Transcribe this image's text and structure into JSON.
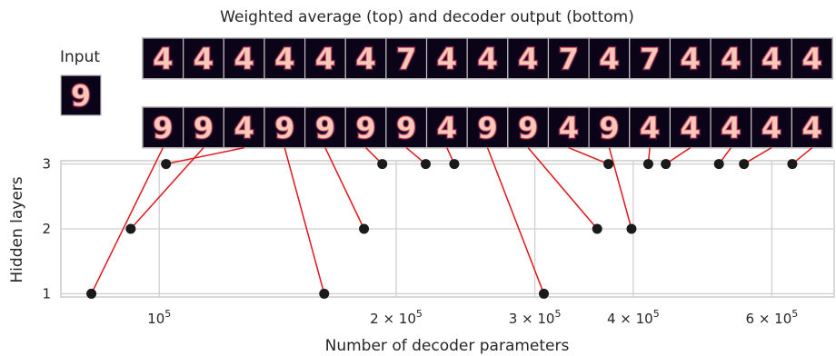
{
  "chart_data": {
    "type": "scatter",
    "title": "Weighted average (top) and decoder output (bottom)",
    "xlabel": "Number of decoder parameters",
    "ylabel": "Hidden layers",
    "xscale": "log",
    "xlim": [
      75000,
      720000
    ],
    "ylim": [
      0.95,
      3.05
    ],
    "yticks": [
      1,
      2,
      3
    ],
    "xticks": [
      {
        "value": 100000,
        "label": "10^5"
      },
      {
        "value": 200000,
        "label": "2 × 10^5"
      },
      {
        "value": 300000,
        "label": "3 × 10^5"
      },
      {
        "value": 400000,
        "label": "4 × 10^5"
      },
      {
        "value": 600000,
        "label": "6 × 10^5"
      }
    ],
    "grid": true,
    "input_label": "Input",
    "input_digit": "9",
    "points": [
      {
        "x": 82000,
        "y": 1
      },
      {
        "x": 92000,
        "y": 2
      },
      {
        "x": 102000,
        "y": 3
      },
      {
        "x": 162000,
        "y": 1
      },
      {
        "x": 182000,
        "y": 2
      },
      {
        "x": 192000,
        "y": 3
      },
      {
        "x": 218000,
        "y": 3
      },
      {
        "x": 237000,
        "y": 3
      },
      {
        "x": 308000,
        "y": 1
      },
      {
        "x": 360000,
        "y": 2
      },
      {
        "x": 372000,
        "y": 3
      },
      {
        "x": 398000,
        "y": 2
      },
      {
        "x": 418000,
        "y": 3
      },
      {
        "x": 440000,
        "y": 3
      },
      {
        "x": 514000,
        "y": 3
      },
      {
        "x": 553000,
        "y": 3
      },
      {
        "x": 637000,
        "y": 3
      }
    ],
    "top_row_digits": [
      "4",
      "4",
      "4",
      "4",
      "4",
      "4",
      "7",
      "4",
      "4",
      "4",
      "7",
      "4",
      "7",
      "4",
      "4",
      "4",
      "4"
    ],
    "bottom_row_digits": [
      "9",
      "9",
      "4",
      "9",
      "9",
      "9",
      "9",
      "4",
      "9",
      "9",
      "4",
      "9",
      "4",
      "4",
      "4",
      "4",
      "4"
    ],
    "point_to_image": [
      0,
      1,
      2,
      3,
      4,
      5,
      6,
      7,
      8,
      9,
      10,
      11,
      12,
      13,
      14,
      15,
      16
    ]
  }
}
